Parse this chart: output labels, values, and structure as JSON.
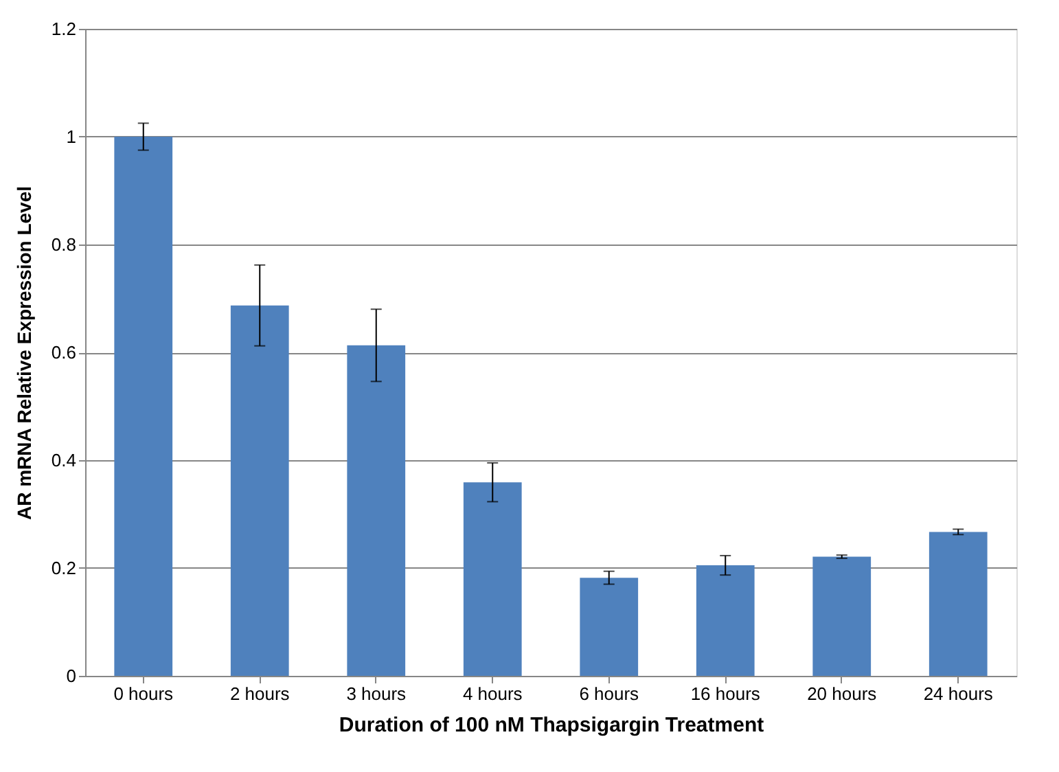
{
  "chart_data": {
    "type": "bar",
    "xlabel": "Duration of 100 nM Thapsigargin Treatment",
    "ylabel": "AR mRNA Relative Expression Level",
    "categories": [
      "0 hours",
      "2 hours",
      "3 hours",
      "4 hours",
      "6 hours",
      "16 hours",
      "20 hours",
      "24 hours"
    ],
    "values": [
      1.0,
      0.687,
      0.613,
      0.359,
      0.182,
      0.205,
      0.221,
      0.267
    ],
    "errors": [
      0.025,
      0.075,
      0.067,
      0.036,
      0.012,
      0.018,
      0.003,
      0.005
    ],
    "color": "#4f81bd",
    "ylim": [
      0,
      1.2
    ],
    "yticks": [
      0,
      0.2,
      0.4,
      0.6,
      0.8,
      1,
      1.2
    ],
    "grid": "y"
  }
}
